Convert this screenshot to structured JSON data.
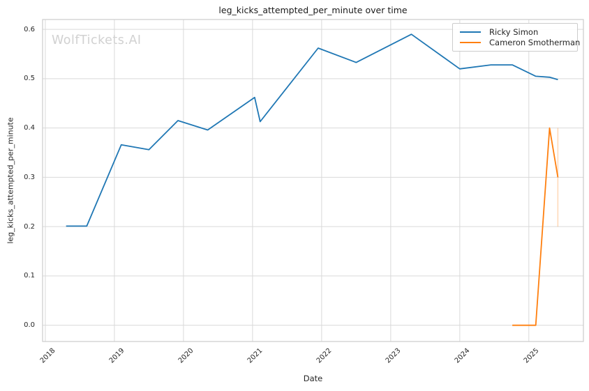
{
  "watermark": "WolfTickets.AI",
  "chart_data": {
    "type": "line",
    "title": "leg_kicks_attempted_per_minute over time",
    "xlabel": "Date",
    "ylabel": "leg_kicks_attempted_per_minute",
    "grid": true,
    "legend_position": "upper right",
    "xlim": [
      2017.96,
      2025.79
    ],
    "ylim": [
      -0.033,
      0.62
    ],
    "x_ticks": [
      2018,
      2019,
      2020,
      2021,
      2022,
      2023,
      2024,
      2025
    ],
    "x_tick_labels": [
      "2018",
      "2019",
      "2020",
      "2021",
      "2022",
      "2023",
      "2024",
      "2025"
    ],
    "y_ticks": [
      0.0,
      0.1,
      0.2,
      0.3,
      0.4,
      0.5,
      0.6
    ],
    "y_tick_labels": [
      "0.0",
      "0.1",
      "0.2",
      "0.3",
      "0.4",
      "0.5",
      "0.6"
    ],
    "grid_color": "#d9d9d9",
    "frame_color": "#cccccc",
    "series": [
      {
        "name": "Ricky Simon",
        "color": "#1f77b4",
        "points": [
          [
            2018.3,
            0.201
          ],
          [
            2018.6,
            0.201
          ],
          [
            2019.1,
            0.366
          ],
          [
            2019.5,
            0.356
          ],
          [
            2019.92,
            0.415
          ],
          [
            2020.35,
            0.396
          ],
          [
            2021.03,
            0.462
          ],
          [
            2021.11,
            0.413
          ],
          [
            2021.95,
            0.562
          ],
          [
            2022.5,
            0.533
          ],
          [
            2023.3,
            0.59
          ],
          [
            2024.0,
            0.52
          ],
          [
            2024.45,
            0.528
          ],
          [
            2024.76,
            0.528
          ],
          [
            2025.1,
            0.505
          ],
          [
            2025.3,
            0.503
          ],
          [
            2025.42,
            0.498
          ]
        ]
      },
      {
        "name": "Cameron Smotherman",
        "color": "#ff7f0e",
        "points": [
          [
            2024.76,
            0.0
          ],
          [
            2025.1,
            0.0
          ],
          [
            2025.3,
            0.4
          ],
          [
            2025.42,
            0.3
          ]
        ],
        "error_bar": {
          "x": 2025.42,
          "y_low": 0.2,
          "y_high": 0.4,
          "opacity": 0.3
        }
      }
    ]
  }
}
